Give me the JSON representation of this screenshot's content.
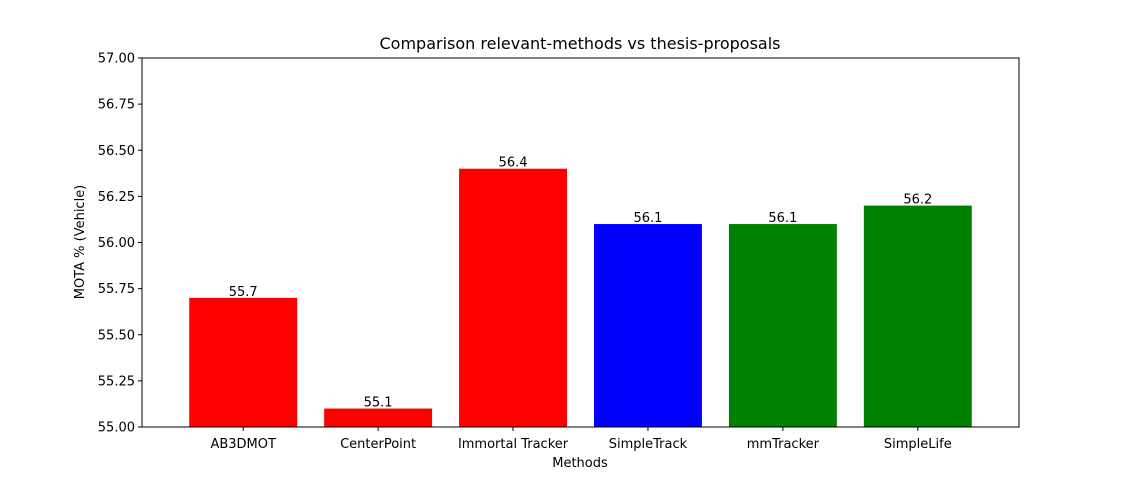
{
  "chart_data": {
    "type": "bar",
    "title": "Comparison relevant-methods vs thesis-proposals",
    "xlabel": "Methods",
    "ylabel": "MOTA % (Vehicle)",
    "categories": [
      "AB3DMOT",
      "CenterPoint",
      "Immortal Tracker",
      "SimpleTrack",
      "mmTracker",
      "SimpleLife"
    ],
    "values": [
      55.7,
      55.1,
      56.4,
      56.1,
      56.1,
      56.2
    ],
    "value_labels": [
      "55.7",
      "55.1",
      "56.4",
      "56.1",
      "56.1",
      "56.2"
    ],
    "bar_colors": [
      "#ff0000",
      "#ff0000",
      "#ff0000",
      "#0000ff",
      "#008000",
      "#008000"
    ],
    "ylim": [
      55.0,
      57.0
    ],
    "yticks": [
      55.0,
      55.25,
      55.5,
      55.75,
      56.0,
      56.25,
      56.5,
      56.75,
      57.0
    ],
    "ytick_labels": [
      "55.00",
      "55.25",
      "55.50",
      "55.75",
      "56.00",
      "56.25",
      "56.50",
      "56.75",
      "57.00"
    ],
    "grid": false,
    "legend": "none"
  }
}
